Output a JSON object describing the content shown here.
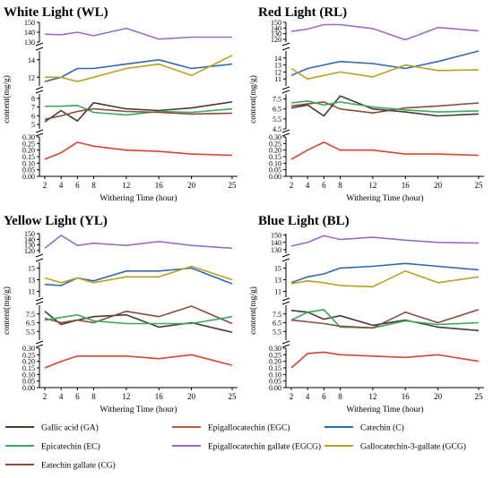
{
  "chart_data": {
    "type": "line",
    "x": [
      2,
      4,
      6,
      8,
      12,
      16,
      20,
      25
    ],
    "xlabel": "Withering Time (hour)",
    "ylabel": "content(mg/g)",
    "colors": {
      "GA": "#4a3a35",
      "EGC": "#d9432f",
      "C": "#2b6ab5",
      "EC": "#3ca85a",
      "EGCG": "#9b6cc7",
      "GCG": "#b8a21c",
      "CG": "#8a4d3c"
    },
    "legend": [
      {
        "key": "GA",
        "label": "Gallic acid (GA)"
      },
      {
        "key": "EGC",
        "label": "Epigallocatechin (EGC)"
      },
      {
        "key": "C",
        "label": "Catechin (C)"
      },
      {
        "key": "EC",
        "label": "Epicatechin (EC)"
      },
      {
        "key": "EGCG",
        "label": "Epigallocatechin gallate (EGCG)"
      },
      {
        "key": "GCG",
        "label": "Gallocatechin-3-gallate (GCG)"
      },
      {
        "key": "CG",
        "label": "Eatechin gallate (CG)"
      }
    ],
    "legend_swatch_colors": {
      "GA": "#4a3a35",
      "EGC": "#b5643a",
      "C": "#2b6ab5",
      "EC": "#3ca85a",
      "EGCG": "#9b6cc7",
      "GCG": "#b8a21c",
      "CG": "#8a4d3c"
    },
    "panels": [
      {
        "title": "White Light (WL)",
        "segments": [
          {
            "range": [
              130,
              150
            ],
            "ticks": [
              130,
              140,
              150
            ]
          },
          {
            "range": [
              11,
              15
            ],
            "ticks": [
              12,
              14
            ]
          },
          {
            "range": [
              4.5,
              8.5
            ],
            "ticks": [
              5,
              6,
              7,
              8
            ]
          },
          {
            "range": [
              0,
              0.3
            ],
            "ticks": [
              0.0,
              0.05,
              0.1,
              0.15,
              0.2,
              0.25,
              0.3
            ]
          }
        ],
        "series": [
          {
            "key": "EGCG",
            "values": [
              138,
              137.5,
              140,
              136.5,
              144,
              133,
              135,
              135
            ]
          },
          {
            "key": "C",
            "values": [
              11.5,
              12,
              13,
              13,
              13.5,
              14,
              13,
              13.5
            ]
          },
          {
            "key": "GCG",
            "values": [
              12,
              12,
              11.5,
              12,
              13,
              13.5,
              12.2,
              14.5
            ]
          },
          {
            "key": "GA",
            "values": [
              5.3,
              6.6,
              5.4,
              7.5,
              6.8,
              6.6,
              6.9,
              7.6
            ]
          },
          {
            "key": "EC",
            "values": [
              7.1,
              7.1,
              7.2,
              6.4,
              6.1,
              6.5,
              6.4,
              6.8
            ]
          },
          {
            "key": "CG",
            "values": [
              5.6,
              6,
              6.5,
              6.8,
              6.5,
              6.4,
              6.2,
              6.3
            ]
          },
          {
            "key": "EGC",
            "values": [
              0.13,
              0.18,
              0.26,
              0.23,
              0.2,
              0.19,
              0.17,
              0.16
            ]
          }
        ]
      },
      {
        "title": "Red Light (RL)",
        "segments": [
          {
            "range": [
              115,
              150
            ],
            "ticks": [
              120,
              130,
              140,
              150
            ]
          },
          {
            "range": [
              10,
              15
            ],
            "ticks": [
              11,
              12,
              13,
              14
            ]
          },
          {
            "range": [
              4.5,
              8
            ],
            "ticks": [
              4.5,
              5.5,
              6.5,
              7.5
            ]
          },
          {
            "range": [
              0,
              0.3
            ],
            "ticks": [
              0.0,
              0.05,
              0.1,
              0.15,
              0.2,
              0.25,
              0.3
            ]
          }
        ],
        "series": [
          {
            "key": "EGCG",
            "values": [
              134,
              138,
              146,
              146,
              139,
              119,
              141,
              135
            ]
          },
          {
            "key": "C",
            "values": [
              11.5,
              12.5,
              13,
              13.5,
              13.2,
              12.5,
              13.5,
              15
            ]
          },
          {
            "key": "GCG",
            "values": [
              12.5,
              11,
              11.5,
              12,
              11.3,
              13,
              12.2,
              12.3
            ]
          },
          {
            "key": "CG",
            "values": [
              6.8,
              7,
              7.2,
              6.5,
              6.1,
              6.6,
              6.8,
              7.1
            ]
          },
          {
            "key": "GA",
            "values": [
              6.6,
              6.9,
              5.8,
              7.8,
              6.5,
              6.2,
              5.8,
              6
            ]
          },
          {
            "key": "EC",
            "values": [
              7.1,
              7.3,
              6.9,
              7.2,
              6.7,
              6.4,
              6.2,
              6.3
            ]
          },
          {
            "key": "EGC",
            "values": [
              0.13,
              0.2,
              0.26,
              0.2,
              0.2,
              0.17,
              0.17,
              0.16
            ]
          }
        ]
      },
      {
        "title": "Yellow Light (YL)",
        "segments": [
          {
            "range": [
              115,
              150
            ],
            "ticks": [
              120,
              130,
              140,
              150
            ]
          },
          {
            "range": [
              10,
              16
            ],
            "ticks": [
              11,
              13,
              15
            ]
          },
          {
            "range": [
              4.5,
              8.5
            ],
            "ticks": [
              5.5,
              6.5,
              7.5
            ]
          },
          {
            "range": [
              0,
              0.3
            ],
            "ticks": [
              0.0,
              0.05,
              0.1,
              0.15,
              0.2,
              0.25,
              0.3
            ]
          }
        ],
        "series": [
          {
            "key": "EGCG",
            "values": [
              124,
              147,
              129,
              133,
              129,
              136,
              129,
              124
            ]
          },
          {
            "key": "C",
            "values": [
              12.2,
              12,
              13.3,
              12.8,
              14.5,
              14.5,
              15,
              12.3
            ]
          },
          {
            "key": "GCG",
            "values": [
              13.3,
              12.5,
              13.3,
              12.5,
              13.5,
              13.5,
              15.3,
              13
            ]
          },
          {
            "key": "GA",
            "values": [
              7.8,
              6.3,
              6.8,
              7.2,
              7.4,
              6,
              6.5,
              5.4
            ]
          },
          {
            "key": "CG",
            "values": [
              7,
              6.5,
              6.8,
              6.5,
              7.8,
              7.2,
              8.4,
              6.4
            ]
          },
          {
            "key": "EC",
            "values": [
              6.8,
              7.1,
              7.4,
              6.7,
              6.4,
              6.4,
              6.4,
              7.2
            ]
          },
          {
            "key": "EGC",
            "values": [
              0.15,
              0.2,
              0.24,
              0.24,
              0.24,
              0.22,
              0.25,
              0.17
            ]
          }
        ]
      },
      {
        "title": "Blue Light (BL)",
        "segments": [
          {
            "range": [
              125,
              152
            ],
            "ticks": [
              130,
              140,
              150
            ]
          },
          {
            "range": [
              10,
              16
            ],
            "ticks": [
              11,
              13,
              15
            ]
          },
          {
            "range": [
              4.5,
              8.5
            ],
            "ticks": [
              5.5,
              6.5,
              7.5
            ]
          },
          {
            "range": [
              0,
              0.3
            ],
            "ticks": [
              0.0,
              0.05,
              0.1,
              0.15,
              0.2,
              0.25,
              0.3
            ]
          }
        ],
        "series": [
          {
            "key": "EGCG",
            "values": [
              135,
              140,
              149,
              144,
              147,
              143,
              140,
              139
            ]
          },
          {
            "key": "C",
            "values": [
              12.5,
              13.5,
              14,
              15,
              15.3,
              15.8,
              15.3,
              14.7
            ]
          },
          {
            "key": "GCG",
            "values": [
              12.3,
              12.8,
              12.5,
              12,
              11.8,
              14.5,
              12.5,
              13.5
            ]
          },
          {
            "key": "GA",
            "values": [
              7.9,
              7.7,
              6.9,
              7.3,
              6.2,
              6.8,
              6,
              5.6
            ]
          },
          {
            "key": "EC",
            "values": [
              6.8,
              7.7,
              8,
              6,
              5.9,
              6.7,
              6.3,
              6.5
            ]
          },
          {
            "key": "CG",
            "values": [
              6.8,
              6.6,
              6.4,
              6.1,
              5.9,
              7.7,
              6.5,
              8
            ]
          },
          {
            "key": "EGC",
            "values": [
              0.15,
              0.26,
              0.27,
              0.25,
              0.24,
              0.23,
              0.25,
              0.2
            ]
          }
        ]
      }
    ]
  }
}
